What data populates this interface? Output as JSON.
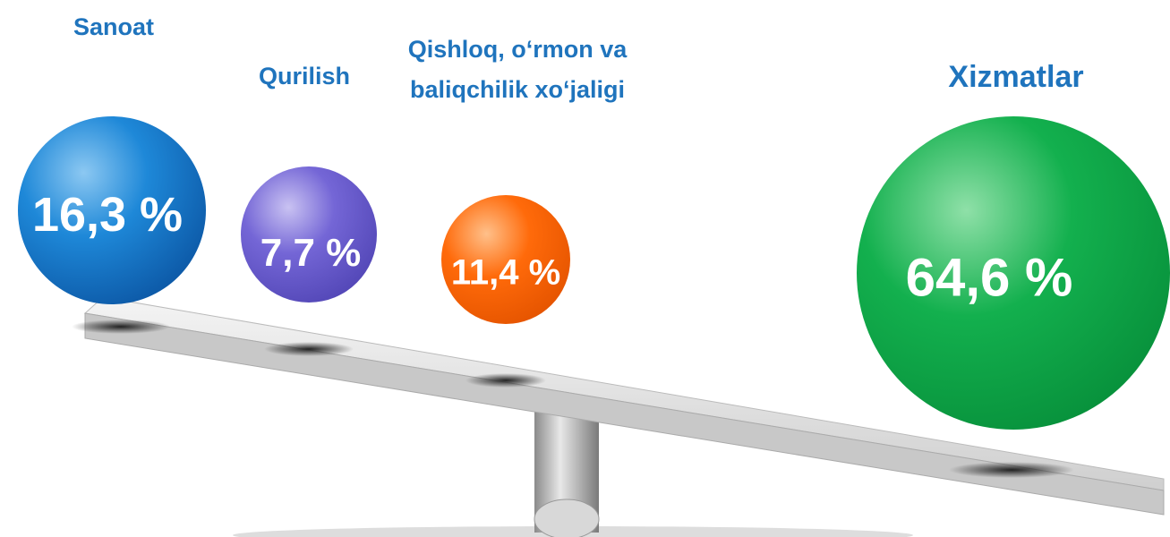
{
  "items": [
    {
      "label": "Sanoat",
      "value": "16,3 %"
    },
    {
      "label": "Qurilish",
      "value": "7,7 %"
    },
    {
      "label": "Qishloq, o‘rmon va baliqchilik xo‘jaligi",
      "value": "11,4 %"
    },
    {
      "label": "Xizmatlar",
      "value": "64,6 %"
    }
  ]
}
